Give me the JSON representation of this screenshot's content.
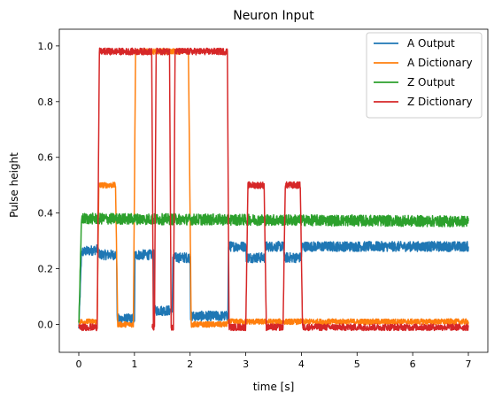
{
  "chart_data": {
    "type": "line",
    "title": "Neuron Input",
    "xlabel": "time [s]",
    "ylabel": "Pulse height",
    "xlim": [
      -0.35,
      7.35
    ],
    "ylim": [
      -0.1,
      1.06
    ],
    "xticks": [
      0,
      1,
      2,
      3,
      4,
      5,
      6,
      7
    ],
    "xtick_labels": [
      "0",
      "1",
      "2",
      "3",
      "4",
      "5",
      "6",
      "7"
    ],
    "yticks": [
      0.0,
      0.2,
      0.4,
      0.6,
      0.8,
      1.0
    ],
    "ytick_labels": [
      "0.0",
      "0.2",
      "0.4",
      "0.6",
      "0.8",
      "1.0"
    ],
    "grid": false,
    "legend_position": "top-right",
    "series": [
      {
        "name": "A Output",
        "color": "#1f77b4",
        "noise": 0.018,
        "points": [
          [
            0,
            -0.02
          ],
          [
            0.05,
            0.26
          ],
          [
            0.35,
            0.27
          ],
          [
            0.36,
            0.25
          ],
          [
            0.68,
            0.25
          ],
          [
            0.69,
            0.02
          ],
          [
            1.0,
            0.02
          ],
          [
            1.01,
            0.25
          ],
          [
            1.35,
            0.25
          ],
          [
            1.36,
            0.05
          ],
          [
            1.68,
            0.05
          ],
          [
            1.69,
            0.24
          ],
          [
            2.0,
            0.24
          ],
          [
            2.01,
            0.03
          ],
          [
            2.68,
            0.03
          ],
          [
            2.69,
            0.28
          ],
          [
            3.0,
            0.28
          ],
          [
            3.01,
            0.24
          ],
          [
            3.35,
            0.24
          ],
          [
            3.36,
            0.28
          ],
          [
            3.68,
            0.28
          ],
          [
            3.69,
            0.24
          ],
          [
            4.0,
            0.24
          ],
          [
            4.01,
            0.28
          ],
          [
            7.0,
            0.28
          ]
        ]
      },
      {
        "name": "A Dictionary",
        "color": "#ff7f0e",
        "noise": 0.01,
        "points": [
          [
            0,
            0.01
          ],
          [
            0.33,
            0.01
          ],
          [
            0.36,
            0.5
          ],
          [
            0.66,
            0.5
          ],
          [
            0.7,
            0.0
          ],
          [
            0.98,
            0.0
          ],
          [
            1.02,
            0.98
          ],
          [
            1.33,
            0.98
          ],
          [
            1.37,
            0.98
          ],
          [
            1.63,
            0.98
          ],
          [
            1.68,
            0.98
          ],
          [
            1.97,
            0.98
          ],
          [
            2.02,
            0.0
          ],
          [
            2.65,
            0.0
          ],
          [
            2.7,
            0.01
          ],
          [
            7.0,
            0.01
          ]
        ]
      },
      {
        "name": "Z Output",
        "color": "#2ca02c",
        "noise": 0.02,
        "points": [
          [
            0,
            0.0
          ],
          [
            0.05,
            0.38
          ],
          [
            7.0,
            0.37
          ]
        ]
      },
      {
        "name": "Z Dictionary",
        "color": "#d62728",
        "noise": 0.012,
        "points": [
          [
            0,
            -0.01
          ],
          [
            0.33,
            -0.01
          ],
          [
            0.37,
            0.98
          ],
          [
            1.31,
            0.98
          ],
          [
            1.34,
            -0.01
          ],
          [
            1.32,
            -0.01
          ],
          [
            1.36,
            -0.01
          ],
          [
            1.39,
            0.98
          ],
          [
            1.63,
            0.98
          ],
          [
            1.66,
            -0.01
          ],
          [
            1.7,
            -0.01
          ],
          [
            1.73,
            0.98
          ],
          [
            2.67,
            0.98
          ],
          [
            2.7,
            -0.01
          ],
          [
            3.0,
            -0.01
          ],
          [
            3.04,
            0.5
          ],
          [
            3.33,
            0.5
          ],
          [
            3.37,
            -0.01
          ],
          [
            3.67,
            -0.01
          ],
          [
            3.71,
            0.5
          ],
          [
            3.98,
            0.5
          ],
          [
            4.02,
            -0.01
          ],
          [
            7.0,
            -0.01
          ]
        ]
      }
    ]
  }
}
